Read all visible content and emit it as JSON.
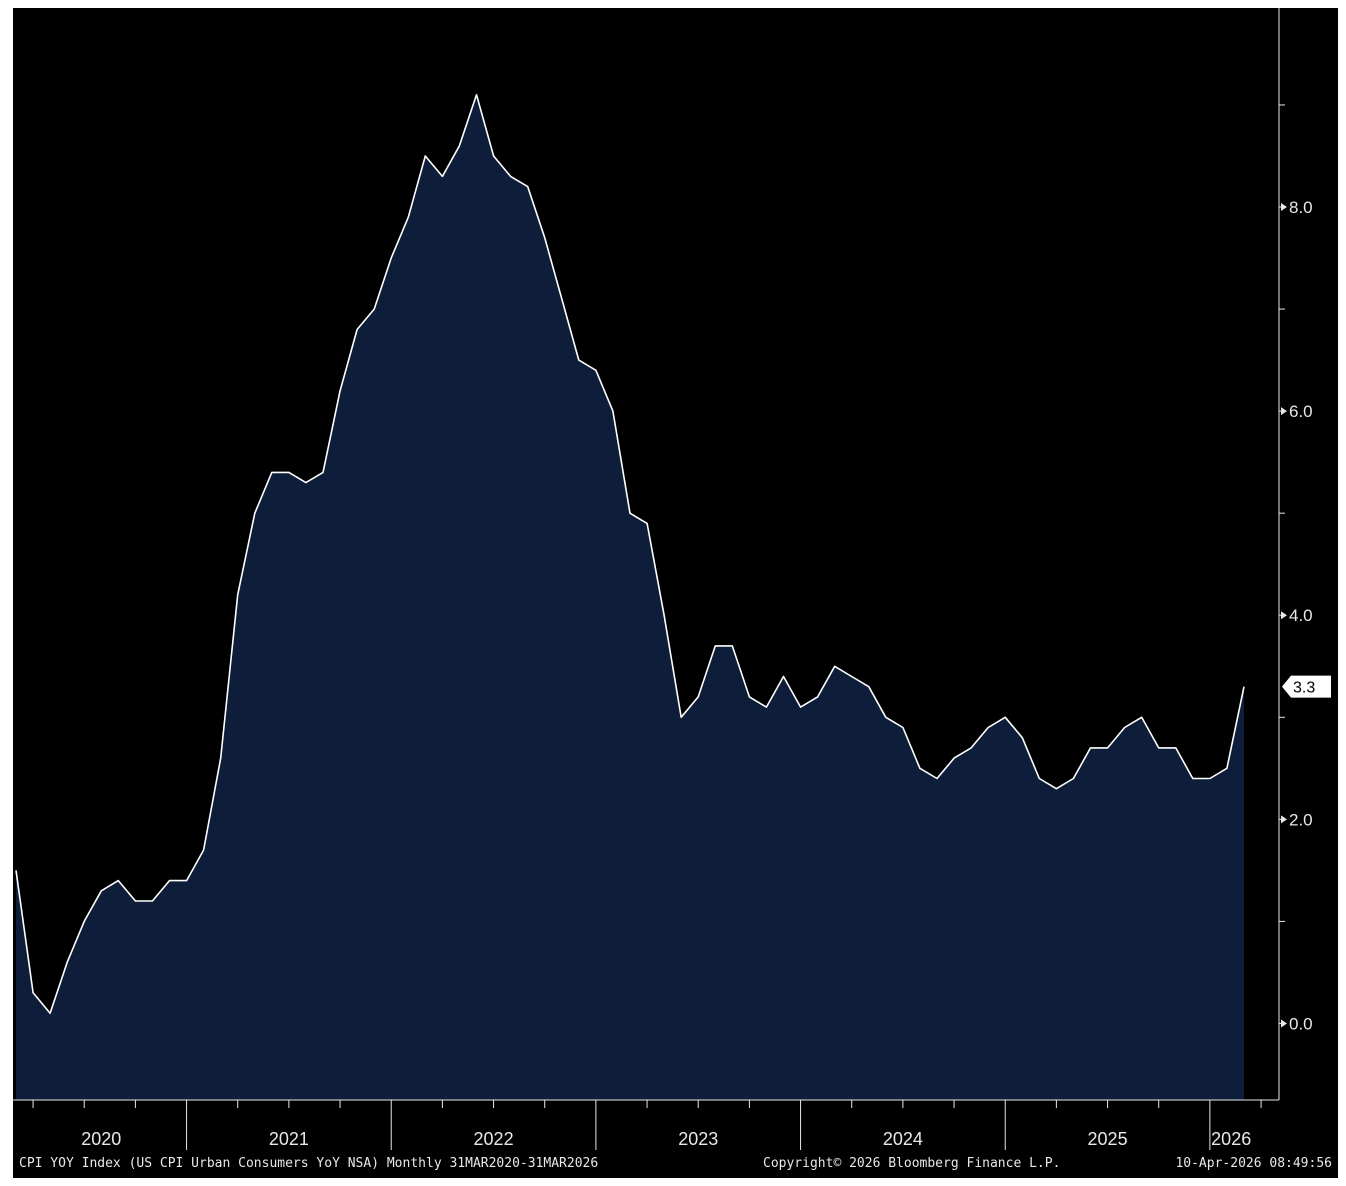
{
  "chart_data": {
    "type": "area",
    "series": [
      {
        "name": "CPI YOY Index",
        "x": [
          "2020-03",
          "2020-04",
          "2020-05",
          "2020-06",
          "2020-07",
          "2020-08",
          "2020-09",
          "2020-10",
          "2020-11",
          "2020-12",
          "2021-01",
          "2021-02",
          "2021-03",
          "2021-04",
          "2021-05",
          "2021-06",
          "2021-07",
          "2021-08",
          "2021-09",
          "2021-10",
          "2021-11",
          "2021-12",
          "2022-01",
          "2022-02",
          "2022-03",
          "2022-04",
          "2022-05",
          "2022-06",
          "2022-07",
          "2022-08",
          "2022-09",
          "2022-10",
          "2022-11",
          "2022-12",
          "2023-01",
          "2023-02",
          "2023-03",
          "2023-04",
          "2023-05",
          "2023-06",
          "2023-07",
          "2023-08",
          "2023-09",
          "2023-10",
          "2023-11",
          "2023-12",
          "2024-01",
          "2024-02",
          "2024-03",
          "2024-04",
          "2024-05",
          "2024-06",
          "2024-07",
          "2024-08",
          "2024-09",
          "2024-10",
          "2024-11",
          "2024-12",
          "2025-01",
          "2025-02",
          "2025-03",
          "2025-04",
          "2025-05",
          "2025-06",
          "2025-07",
          "2025-08",
          "2025-09",
          "2025-10",
          "2025-11",
          "2025-12",
          "2026-01",
          "2026-02",
          "2026-03"
        ],
        "values": [
          1.5,
          0.3,
          0.1,
          0.6,
          1.0,
          1.3,
          1.4,
          1.2,
          1.2,
          1.4,
          1.4,
          1.7,
          2.6,
          4.2,
          5.0,
          5.4,
          5.4,
          5.3,
          5.4,
          6.2,
          6.8,
          7.0,
          7.5,
          7.9,
          8.5,
          8.3,
          8.6,
          9.1,
          8.5,
          8.3,
          8.2,
          7.7,
          7.1,
          6.5,
          6.4,
          6.0,
          5.0,
          4.9,
          4.0,
          3.0,
          3.2,
          3.7,
          3.7,
          3.2,
          3.1,
          3.4,
          3.1,
          3.2,
          3.5,
          3.4,
          3.3,
          3.0,
          2.9,
          2.5,
          2.4,
          2.6,
          2.7,
          2.9,
          3.0,
          2.8,
          2.4,
          2.3,
          2.4,
          2.7,
          2.7,
          2.9,
          3.0,
          2.7,
          2.7,
          2.4,
          2.4,
          2.5,
          3.3
        ]
      }
    ],
    "y_ticks": [
      "0.0",
      "2.0",
      "4.0",
      "6.0",
      "8.0"
    ],
    "ylim": [
      -0.75,
      9.95
    ],
    "x_year_labels": [
      "2020",
      "2021",
      "2022",
      "2023",
      "2024",
      "2025",
      "2026"
    ],
    "last_value_label": "3.3",
    "grid": false,
    "colors": {
      "area_fill": "#0e1e3a",
      "line": "#ffffff",
      "background": "#000000",
      "text": "#e8e8e8"
    }
  },
  "footer": {
    "series_description": "CPI YOY Index (US CPI Urban Consumers YoY NSA) Monthly 31MAR2020-31MAR2026",
    "copyright": "Copyright© 2026 Bloomberg Finance L.P.",
    "timestamp": "10-Apr-2026 08:49:56"
  }
}
